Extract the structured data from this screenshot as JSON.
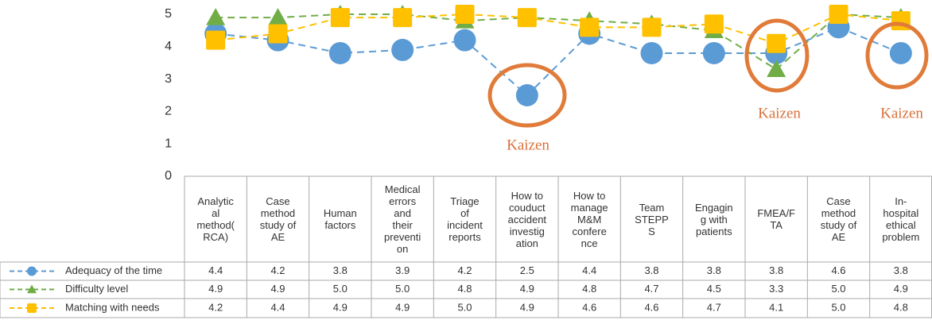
{
  "chart_data": {
    "type": "line",
    "categories": [
      "Analytic\nal\nmethod(\nRCA)",
      "Case\nmethod\nstudy of\nAE",
      "Human\nfactors",
      "Medical\nerrors\nand\ntheir\npreventi\non",
      "Triage\nof\nincident\nreports",
      "How to\ncouduct\naccident\ninvestig\nation",
      "How to\nmanage\nM&M\nconfere\nnce",
      "Team\nSTEPP\nS",
      "Engagin\ng with\npatients",
      "FMEA/F\nTA",
      "Case\nmethod\nstudy of\nAE",
      "In-\nhospital\nethical\nproblem"
    ],
    "series": [
      {
        "name": "Adequacy of the time",
        "color": "#5b9bd5",
        "marker": "circle",
        "values": [
          4.4,
          4.2,
          3.8,
          3.9,
          4.2,
          2.5,
          4.4,
          3.8,
          3.8,
          3.8,
          4.6,
          3.8
        ],
        "value_labels": [
          "4.4",
          "4.2",
          "3.8",
          "3.9",
          "4.2",
          "2.5",
          "4.4",
          "3.8",
          "3.8",
          "3.8",
          "4.6",
          "3.8"
        ]
      },
      {
        "name": "Difficulty level",
        "color": "#70ad47",
        "marker": "triangle",
        "values": [
          4.9,
          4.9,
          5.0,
          5.0,
          4.8,
          4.9,
          4.8,
          4.7,
          4.5,
          3.3,
          5.0,
          4.9
        ],
        "value_labels": [
          "4.9",
          "4.9",
          "5.0",
          "5.0",
          "4.8",
          "4.9",
          "4.8",
          "4.7",
          "4.5",
          "3.3",
          "5.0",
          "4.9"
        ]
      },
      {
        "name": "Matching with needs",
        "color": "#ffc000",
        "marker": "square",
        "values": [
          4.2,
          4.4,
          4.9,
          4.9,
          5.0,
          4.9,
          4.6,
          4.6,
          4.7,
          4.1,
          5.0,
          4.8
        ],
        "value_labels": [
          "4.2",
          "4.4",
          "4.9",
          "4.9",
          "5.0",
          "4.9",
          "4.6",
          "4.6",
          "4.7",
          "4.1",
          "5.0",
          "4.8"
        ]
      }
    ],
    "ylim": [
      0,
      5
    ],
    "yticks": [
      0,
      1,
      2,
      3,
      4,
      5
    ],
    "annotations": [
      "Kaizen",
      "Kaizen",
      "Kaizen"
    ]
  }
}
